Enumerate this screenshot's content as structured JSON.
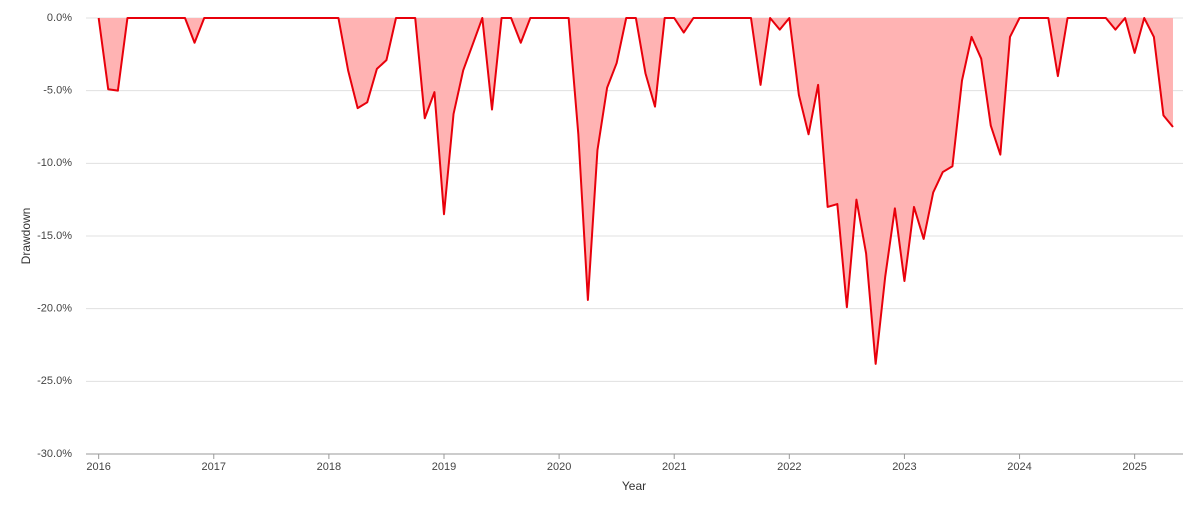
{
  "chart_data": {
    "type": "area",
    "x_label": "Year",
    "y_label": "Drawdown",
    "x": [
      2016.0,
      2016.083,
      2016.167,
      2016.25,
      2016.333,
      2016.417,
      2016.5,
      2016.583,
      2016.667,
      2016.75,
      2016.833,
      2016.917,
      2017.0,
      2017.083,
      2017.167,
      2017.25,
      2017.333,
      2017.417,
      2017.5,
      2017.583,
      2017.667,
      2017.75,
      2017.833,
      2017.917,
      2018.0,
      2018.083,
      2018.167,
      2018.25,
      2018.333,
      2018.417,
      2018.5,
      2018.583,
      2018.667,
      2018.75,
      2018.833,
      2018.917,
      2019.0,
      2019.083,
      2019.167,
      2019.25,
      2019.333,
      2019.417,
      2019.5,
      2019.583,
      2019.667,
      2019.75,
      2019.833,
      2019.917,
      2020.0,
      2020.083,
      2020.167,
      2020.25,
      2020.333,
      2020.417,
      2020.5,
      2020.583,
      2020.667,
      2020.75,
      2020.833,
      2020.917,
      2021.0,
      2021.083,
      2021.167,
      2021.25,
      2021.333,
      2021.417,
      2021.5,
      2021.583,
      2021.667,
      2021.75,
      2021.833,
      2021.917,
      2022.0,
      2022.083,
      2022.167,
      2022.25,
      2022.333,
      2022.417,
      2022.5,
      2022.583,
      2022.667,
      2022.75,
      2022.833,
      2022.917,
      2023.0,
      2023.083,
      2023.167,
      2023.25,
      2023.333,
      2023.417,
      2023.5,
      2023.583,
      2023.667,
      2023.75,
      2023.833,
      2023.917,
      2024.0,
      2024.083,
      2024.167,
      2024.25,
      2024.333,
      2024.417,
      2024.5,
      2024.583,
      2024.667,
      2024.75,
      2024.833,
      2024.917,
      2025.0,
      2025.083,
      2025.167,
      2025.25,
      2025.333
    ],
    "series": [
      {
        "color": "#e8000b",
        "fill": "#ffb3b3",
        "values": [
          0,
          -4.9,
          -5.0,
          0,
          0,
          0,
          0,
          0,
          0,
          0,
          -1.7,
          0,
          0,
          0,
          0,
          0,
          0,
          0,
          0,
          0,
          0,
          0,
          0,
          0,
          0,
          0,
          -3.6,
          -6.2,
          -5.8,
          -3.5,
          -2.9,
          0,
          0,
          0,
          -6.9,
          -5.1,
          -13.5,
          -6.6,
          -3.6,
          -1.8,
          0,
          -6.3,
          0,
          0,
          -1.7,
          0,
          0,
          0,
          0,
          0,
          -8.0,
          -19.4,
          -9.1,
          -4.8,
          -3.1,
          0,
          0,
          -3.8,
          -6.1,
          0,
          0,
          -1.0,
          0,
          0,
          0,
          0,
          0,
          0,
          0,
          -4.6,
          0,
          -0.8,
          0,
          -5.3,
          -8.0,
          -4.6,
          -13.0,
          -12.8,
          -19.9,
          -12.5,
          -16.2,
          -23.8,
          -17.8,
          -13.1,
          -18.1,
          -13.0,
          -15.2,
          -12.0,
          -10.6,
          -10.2,
          -4.3,
          -1.3,
          -2.8,
          -7.4,
          -9.4,
          -1.3,
          0,
          0,
          0,
          0,
          -4.0,
          0,
          0,
          0,
          0,
          0,
          -0.8,
          0,
          -2.4,
          0,
          -1.3,
          -6.7,
          -7.5
        ]
      }
    ],
    "xlim": [
      2015.89,
      2025.42
    ],
    "xticks": [
      2016,
      2017,
      2018,
      2019,
      2020,
      2021,
      2022,
      2023,
      2024,
      2025
    ],
    "ylim": [
      -30,
      0
    ],
    "yticks": [
      {
        "value": 0,
        "label": "0.0%"
      },
      {
        "value": -5,
        "label": "-5.0%"
      },
      {
        "value": -10,
        "label": "-10.0%"
      },
      {
        "value": -15,
        "label": "-15.0%"
      },
      {
        "value": -20,
        "label": "-20.0%"
      },
      {
        "value": -25,
        "label": "-25.0%"
      },
      {
        "value": -30,
        "label": "-30.0%"
      }
    ],
    "grid": true
  }
}
